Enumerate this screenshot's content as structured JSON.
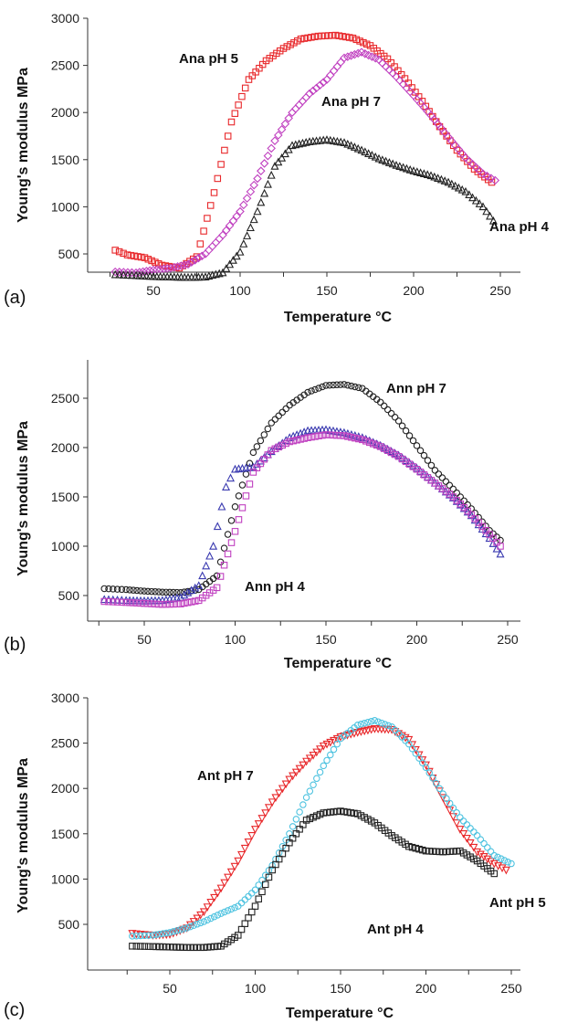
{
  "chart_data": [
    {
      "type": "scatter",
      "panel_label": "(a)",
      "xlabel": "Temperature °C",
      "ylabel": "Young's modulus MPa",
      "xlim": [
        0,
        275
      ],
      "ylim": [
        0,
        3000
      ],
      "xticks": [
        50,
        100,
        150,
        200,
        250
      ],
      "yticks": [
        500,
        1000,
        1500,
        2000,
        2500,
        3000
      ],
      "series": [
        {
          "name": "Ana pH 5",
          "color": "#e8282b",
          "marker": "square",
          "points": [
            [
              28,
              540
            ],
            [
              35,
              490
            ],
            [
              45,
              460
            ],
            [
              55,
              380
            ],
            [
              65,
              350
            ],
            [
              75,
              470
            ],
            [
              85,
              1150
            ],
            [
              95,
              1900
            ],
            [
              105,
              2350
            ],
            [
              115,
              2550
            ],
            [
              125,
              2680
            ],
            [
              135,
              2780
            ],
            [
              145,
              2810
            ],
            [
              155,
              2820
            ],
            [
              165,
              2790
            ],
            [
              175,
              2710
            ],
            [
              185,
              2570
            ],
            [
              195,
              2360
            ],
            [
              205,
              2120
            ],
            [
              215,
              1850
            ],
            [
              225,
              1600
            ],
            [
              235,
              1400
            ],
            [
              245,
              1260
            ]
          ]
        },
        {
          "name": "Ana pH 7",
          "color": "#c040c0",
          "marker": "diamond",
          "points": [
            [
              28,
              310
            ],
            [
              40,
              300
            ],
            [
              50,
              330
            ],
            [
              60,
              350
            ],
            [
              70,
              390
            ],
            [
              80,
              500
            ],
            [
              90,
              700
            ],
            [
              100,
              950
            ],
            [
              110,
              1300
            ],
            [
              120,
              1700
            ],
            [
              130,
              2000
            ],
            [
              140,
              2200
            ],
            [
              150,
              2350
            ],
            [
              160,
              2580
            ],
            [
              170,
              2640
            ],
            [
              180,
              2560
            ],
            [
              190,
              2380
            ],
            [
              200,
              2180
            ],
            [
              210,
              1970
            ],
            [
              220,
              1740
            ],
            [
              230,
              1520
            ],
            [
              240,
              1350
            ],
            [
              247,
              1280
            ]
          ]
        },
        {
          "name": "Ana pH 4",
          "color": "#222222",
          "marker": "triangle",
          "points": [
            [
              28,
              280
            ],
            [
              40,
              270
            ],
            [
              50,
              260
            ],
            [
              60,
              255
            ],
            [
              70,
              250
            ],
            [
              80,
              255
            ],
            [
              90,
              300
            ],
            [
              100,
              520
            ],
            [
              110,
              950
            ],
            [
              120,
              1430
            ],
            [
              130,
              1650
            ],
            [
              140,
              1690
            ],
            [
              150,
              1710
            ],
            [
              160,
              1680
            ],
            [
              170,
              1600
            ],
            [
              180,
              1510
            ],
            [
              190,
              1440
            ],
            [
              200,
              1380
            ],
            [
              210,
              1330
            ],
            [
              220,
              1260
            ],
            [
              230,
              1160
            ],
            [
              240,
              1000
            ],
            [
              246,
              850
            ]
          ]
        }
      ],
      "annotations": [
        "Ana pH 5",
        "Ana pH 7",
        "Ana pH 4"
      ]
    },
    {
      "type": "scatter",
      "panel_label": "(b)",
      "xlabel": "Temperature °C",
      "ylabel": "Young's modulus MPa",
      "xlim": [
        0,
        275
      ],
      "ylim": [
        250,
        2900
      ],
      "xticks": [
        50,
        100,
        150,
        200,
        250
      ],
      "yticks": [
        500,
        1000,
        1500,
        2000,
        2500
      ],
      "series": [
        {
          "name": "Ann pH 7",
          "color": "#222222",
          "marker": "circle",
          "points": [
            [
              28,
              570
            ],
            [
              40,
              560
            ],
            [
              50,
              545
            ],
            [
              60,
              535
            ],
            [
              70,
              530
            ],
            [
              80,
              560
            ],
            [
              90,
              700
            ],
            [
              100,
              1400
            ],
            [
              110,
              1950
            ],
            [
              120,
              2250
            ],
            [
              130,
              2430
            ],
            [
              140,
              2560
            ],
            [
              150,
              2630
            ],
            [
              160,
              2640
            ],
            [
              170,
              2600
            ],
            [
              180,
              2460
            ],
            [
              190,
              2270
            ],
            [
              200,
              2020
            ],
            [
              210,
              1770
            ],
            [
              220,
              1580
            ],
            [
              230,
              1380
            ],
            [
              240,
              1160
            ],
            [
              246,
              1060
            ]
          ]
        },
        {
          "name": "Ann pH 4 (blue)",
          "color": "#3a3ab0",
          "marker": "triangle",
          "points": [
            [
              28,
              460
            ],
            [
              40,
              450
            ],
            [
              50,
              445
            ],
            [
              60,
              450
            ],
            [
              70,
              480
            ],
            [
              80,
              600
            ],
            [
              88,
              1000
            ],
            [
              95,
              1600
            ],
            [
              100,
              1780
            ],
            [
              110,
              1800
            ],
            [
              120,
              1960
            ],
            [
              130,
              2100
            ],
            [
              140,
              2170
            ],
            [
              150,
              2180
            ],
            [
              160,
              2150
            ],
            [
              170,
              2100
            ],
            [
              180,
              2020
            ],
            [
              190,
              1920
            ],
            [
              200,
              1790
            ],
            [
              210,
              1640
            ],
            [
              220,
              1490
            ],
            [
              230,
              1310
            ],
            [
              240,
              1080
            ],
            [
              246,
              920
            ]
          ]
        },
        {
          "name": "Ann pH 4",
          "color": "#c040c0",
          "marker": "square",
          "points": [
            [
              28,
              440
            ],
            [
              40,
              430
            ],
            [
              50,
              420
            ],
            [
              60,
              410
            ],
            [
              70,
              415
            ],
            [
              80,
              450
            ],
            [
              90,
              580
            ],
            [
              100,
              1150
            ],
            [
              110,
              1750
            ],
            [
              120,
              1970
            ],
            [
              130,
              2060
            ],
            [
              140,
              2100
            ],
            [
              150,
              2130
            ],
            [
              160,
              2120
            ],
            [
              170,
              2080
            ],
            [
              180,
              2010
            ],
            [
              190,
              1910
            ],
            [
              200,
              1780
            ],
            [
              210,
              1640
            ],
            [
              220,
              1500
            ],
            [
              230,
              1320
            ],
            [
              240,
              1120
            ],
            [
              246,
              1000
            ]
          ]
        }
      ],
      "annotations": [
        "Ann pH 7",
        "Ann pH 4"
      ]
    },
    {
      "type": "scatter",
      "panel_label": "(c)",
      "xlabel": "Temperature °C",
      "ylabel": "Young's modulus MPa",
      "xlim": [
        0,
        275
      ],
      "ylim": [
        0,
        3000
      ],
      "xticks": [
        50,
        100,
        150,
        200,
        250
      ],
      "yticks": [
        500,
        1000,
        1500,
        2000,
        2500,
        3000
      ],
      "series": [
        {
          "name": "Ant pH 7",
          "color": "#e8282b",
          "marker": "triangle-down",
          "points": [
            [
              28,
              400
            ],
            [
              40,
              380
            ],
            [
              50,
              390
            ],
            [
              60,
              460
            ],
            [
              70,
              640
            ],
            [
              80,
              900
            ],
            [
              90,
              1200
            ],
            [
              100,
              1550
            ],
            [
              110,
              1850
            ],
            [
              120,
              2100
            ],
            [
              130,
              2300
            ],
            [
              140,
              2470
            ],
            [
              150,
              2570
            ],
            [
              160,
              2620
            ],
            [
              170,
              2660
            ],
            [
              180,
              2650
            ],
            [
              190,
              2540
            ],
            [
              200,
              2260
            ],
            [
              210,
              1900
            ],
            [
              220,
              1550
            ],
            [
              230,
              1300
            ],
            [
              240,
              1170
            ],
            [
              247,
              1100
            ]
          ]
        },
        {
          "name": "Ant pH 5",
          "color": "#4fc3e0",
          "marker": "circle",
          "points": [
            [
              28,
              370
            ],
            [
              40,
              380
            ],
            [
              50,
              410
            ],
            [
              60,
              460
            ],
            [
              70,
              530
            ],
            [
              80,
              620
            ],
            [
              90,
              700
            ],
            [
              100,
              880
            ],
            [
              110,
              1150
            ],
            [
              120,
              1500
            ],
            [
              130,
              1900
            ],
            [
              140,
              2250
            ],
            [
              150,
              2550
            ],
            [
              160,
              2700
            ],
            [
              170,
              2750
            ],
            [
              180,
              2680
            ],
            [
              190,
              2490
            ],
            [
              200,
              2230
            ],
            [
              210,
              1940
            ],
            [
              220,
              1680
            ],
            [
              230,
              1480
            ],
            [
              240,
              1260
            ],
            [
              250,
              1170
            ]
          ]
        },
        {
          "name": "Ant pH 4",
          "color": "#222222",
          "marker": "square",
          "points": [
            [
              28,
              260
            ],
            [
              40,
              255
            ],
            [
              50,
              250
            ],
            [
              60,
              245
            ],
            [
              70,
              245
            ],
            [
              80,
              260
            ],
            [
              90,
              380
            ],
            [
              100,
              700
            ],
            [
              110,
              1100
            ],
            [
              120,
              1400
            ],
            [
              130,
              1650
            ],
            [
              140,
              1730
            ],
            [
              150,
              1750
            ],
            [
              160,
              1720
            ],
            [
              170,
              1620
            ],
            [
              180,
              1480
            ],
            [
              190,
              1360
            ],
            [
              200,
              1310
            ],
            [
              210,
              1300
            ],
            [
              220,
              1310
            ],
            [
              230,
              1200
            ],
            [
              240,
              1060
            ]
          ]
        }
      ],
      "annotations": [
        "Ant pH 7",
        "Ant pH 5",
        "Ant pH 4"
      ]
    }
  ]
}
